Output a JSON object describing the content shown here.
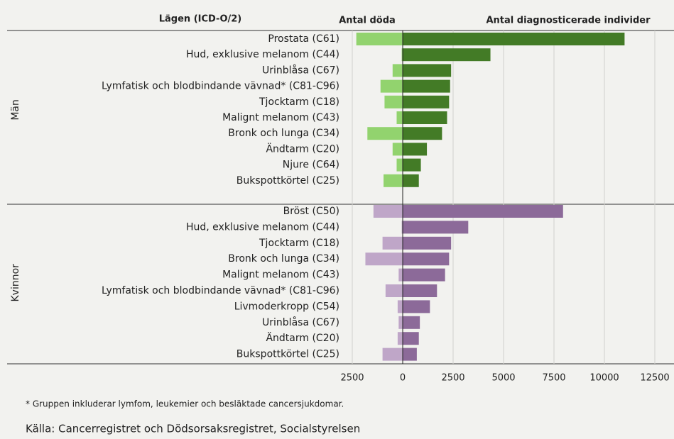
{
  "chart_data": {
    "type": "diverging-bar",
    "category_header": "Lägen (ICD-O/2)",
    "series": [
      {
        "name": "Antal döda"
      },
      {
        "name": "Antal diagnosticerade individer"
      }
    ],
    "groups": [
      {
        "name": "Män",
        "colors": [
          "#92d36e",
          "#437b26"
        ],
        "categories": [
          "Prostata (C61)",
          "Hud, exklusive melanom (C44)",
          "Urinblåsa (C67)",
          "Lymfatisk och blodbindande vävnad* (C81-C96)",
          "Tjocktarm (C18)",
          "Malignt melanom (C43)",
          "Bronk och lunga (C34)",
          "Ändtarm (C20)",
          "Njure (C64)",
          "Bukspottkörtel (C25)"
        ],
        "values": [
          [
            -2300,
            -50,
            -500,
            -1100,
            -900,
            -300,
            -1750,
            -500,
            -300,
            -950
          ],
          [
            11000,
            4350,
            2400,
            2350,
            2300,
            2200,
            1950,
            1200,
            900,
            800
          ]
        ]
      },
      {
        "name": "Kvinnor",
        "colors": [
          "#bfa6c8",
          "#8c6a99"
        ],
        "categories": [
          "Bröst (C50)",
          "Hud, exklusive melanom (C44)",
          "Tjocktarm (C18)",
          "Bronk och lunga (C34)",
          "Malignt melanom (C43)",
          "Lymfatisk och blodbindande vävnad* (C81-C96)",
          "Livmoderkropp (C54)",
          "Urinblåsa (C67)",
          "Ändtarm (C20)",
          "Bukspottkörtel (C25)"
        ],
        "values": [
          [
            -1450,
            -50,
            -1000,
            -1850,
            -200,
            -850,
            -250,
            -200,
            -250,
            -1000
          ],
          [
            7950,
            3250,
            2400,
            2300,
            2100,
            1700,
            1350,
            850,
            800,
            700
          ]
        ]
      }
    ],
    "xlim": [
      -2500,
      12500
    ],
    "xticks": [
      {
        "value": -2500,
        "label": "2500"
      },
      0,
      2500,
      5000,
      7500,
      10000,
      12500
    ],
    "grid": true,
    "footnote": "* Gruppen inkluderar lymfom, leukemier och besläktade cancersjukdomar.",
    "source": "Källa: Cancerregistret och Dödsorsaksregistret, Socialstyrelsen"
  }
}
